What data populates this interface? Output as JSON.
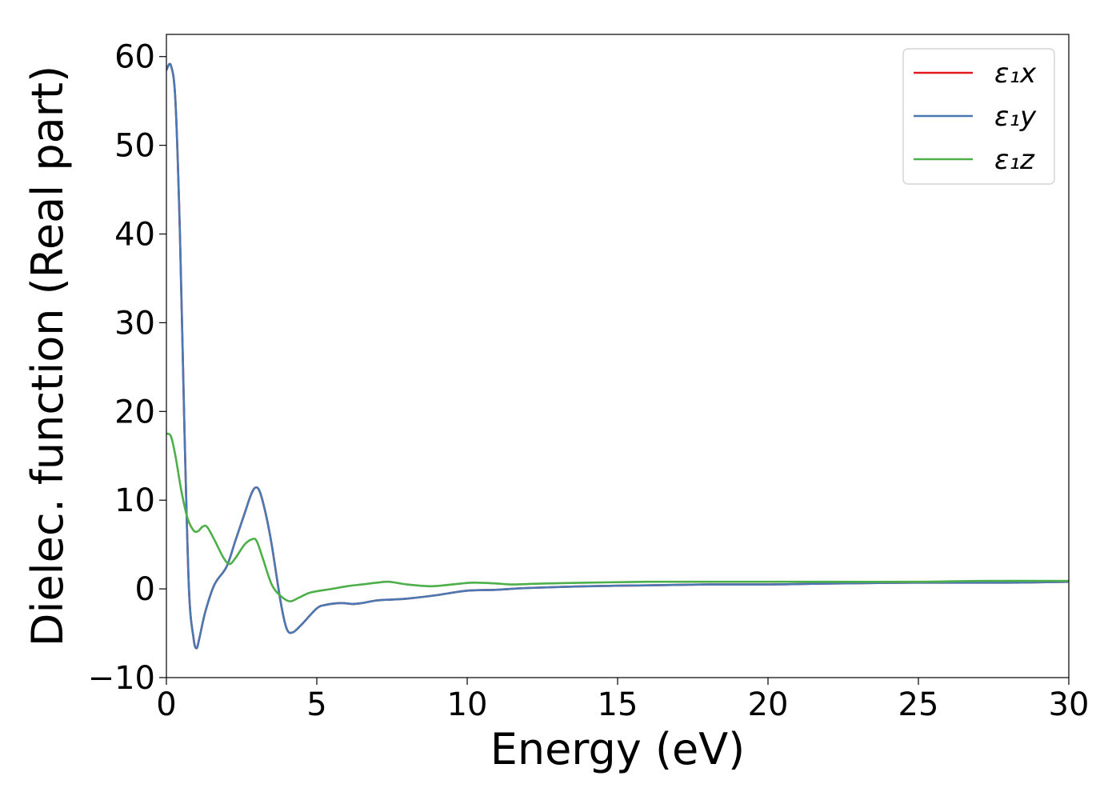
{
  "chart_data": {
    "type": "line",
    "title": "",
    "xlabel": "Energy (eV)",
    "ylabel": "Dielec. function (Real part)",
    "xlim": [
      0,
      30
    ],
    "ylim": [
      -10,
      62.5
    ],
    "xticks": [
      0,
      5,
      10,
      15,
      20,
      25,
      30
    ],
    "xtick_labels": [
      "0",
      "5",
      "10",
      "15",
      "20",
      "25",
      "30"
    ],
    "yticks": [
      -10,
      0,
      10,
      20,
      30,
      40,
      50,
      60
    ],
    "ytick_labels": [
      "−10",
      "0",
      "10",
      "20",
      "30",
      "40",
      "50",
      "60"
    ],
    "grid": false,
    "legend_position": "top-right",
    "series": [
      {
        "name": "ε₁x",
        "color": "#e41a1c",
        "x": [
          0,
          0.15,
          0.3,
          0.45,
          0.6,
          0.75,
          0.9,
          1.0,
          1.1,
          1.3,
          1.6,
          2.0,
          2.3,
          2.6,
          2.8,
          2.95,
          3.1,
          3.3,
          3.5,
          3.8,
          4.0,
          4.2,
          4.5,
          5.0,
          5.3,
          5.8,
          6.2,
          6.5,
          7.0,
          7.5,
          8.0,
          9.0,
          10.0,
          11.0,
          12.0,
          14.0,
          16.0,
          18.0,
          20.0,
          22.0,
          25.0,
          28.0,
          30.0
        ],
        "y": [
          58.5,
          59.0,
          55.0,
          40.0,
          18.0,
          0.0,
          -5.5,
          -6.7,
          -5.5,
          -2.5,
          0.5,
          2.5,
          5.5,
          8.5,
          10.5,
          11.4,
          11.0,
          8.5,
          5.0,
          -1.5,
          -4.5,
          -4.9,
          -4.0,
          -2.2,
          -1.8,
          -1.6,
          -1.7,
          -1.6,
          -1.3,
          -1.2,
          -1.1,
          -0.7,
          -0.2,
          -0.1,
          0.1,
          0.3,
          0.4,
          0.5,
          0.5,
          0.6,
          0.7,
          0.7,
          0.8
        ]
      },
      {
        "name": "ε₁y",
        "color": "#4a78b2",
        "x": [
          0,
          0.15,
          0.3,
          0.45,
          0.6,
          0.75,
          0.9,
          1.0,
          1.1,
          1.3,
          1.6,
          2.0,
          2.3,
          2.6,
          2.8,
          2.95,
          3.1,
          3.3,
          3.5,
          3.8,
          4.0,
          4.2,
          4.5,
          5.0,
          5.3,
          5.8,
          6.2,
          6.5,
          7.0,
          7.5,
          8.0,
          9.0,
          10.0,
          11.0,
          12.0,
          14.0,
          16.0,
          18.0,
          20.0,
          22.0,
          25.0,
          28.0,
          30.0
        ],
        "y": [
          58.5,
          59.0,
          55.0,
          40.0,
          18.0,
          0.0,
          -5.5,
          -6.7,
          -5.5,
          -2.5,
          0.5,
          2.5,
          5.5,
          8.5,
          10.5,
          11.4,
          11.0,
          8.5,
          5.0,
          -1.5,
          -4.5,
          -4.9,
          -4.0,
          -2.2,
          -1.8,
          -1.6,
          -1.7,
          -1.6,
          -1.3,
          -1.2,
          -1.1,
          -0.7,
          -0.2,
          -0.1,
          0.1,
          0.3,
          0.4,
          0.5,
          0.5,
          0.6,
          0.7,
          0.7,
          0.8
        ]
      },
      {
        "name": "ε₁z",
        "color": "#4daf4a",
        "x": [
          0,
          0.15,
          0.3,
          0.5,
          0.7,
          0.9,
          1.05,
          1.2,
          1.35,
          1.6,
          1.9,
          2.1,
          2.3,
          2.6,
          2.85,
          3.0,
          3.2,
          3.5,
          3.8,
          4.1,
          4.4,
          4.8,
          5.5,
          6.0,
          6.5,
          7.0,
          7.4,
          8.0,
          8.8,
          9.5,
          10.2,
          11.0,
          11.5,
          12.5,
          14.0,
          16.0,
          18.0,
          20.0,
          22.0,
          25.0,
          27.0,
          30.0
        ],
        "y": [
          17.5,
          17.2,
          15.0,
          11.0,
          8.0,
          6.6,
          6.5,
          7.0,
          7.0,
          5.5,
          3.5,
          2.8,
          3.5,
          5.0,
          5.6,
          5.4,
          3.5,
          0.5,
          -0.8,
          -1.4,
          -1.0,
          -0.4,
          0.0,
          0.3,
          0.5,
          0.7,
          0.8,
          0.5,
          0.3,
          0.5,
          0.7,
          0.6,
          0.5,
          0.6,
          0.7,
          0.8,
          0.8,
          0.8,
          0.8,
          0.8,
          0.9,
          0.9
        ]
      }
    ]
  }
}
